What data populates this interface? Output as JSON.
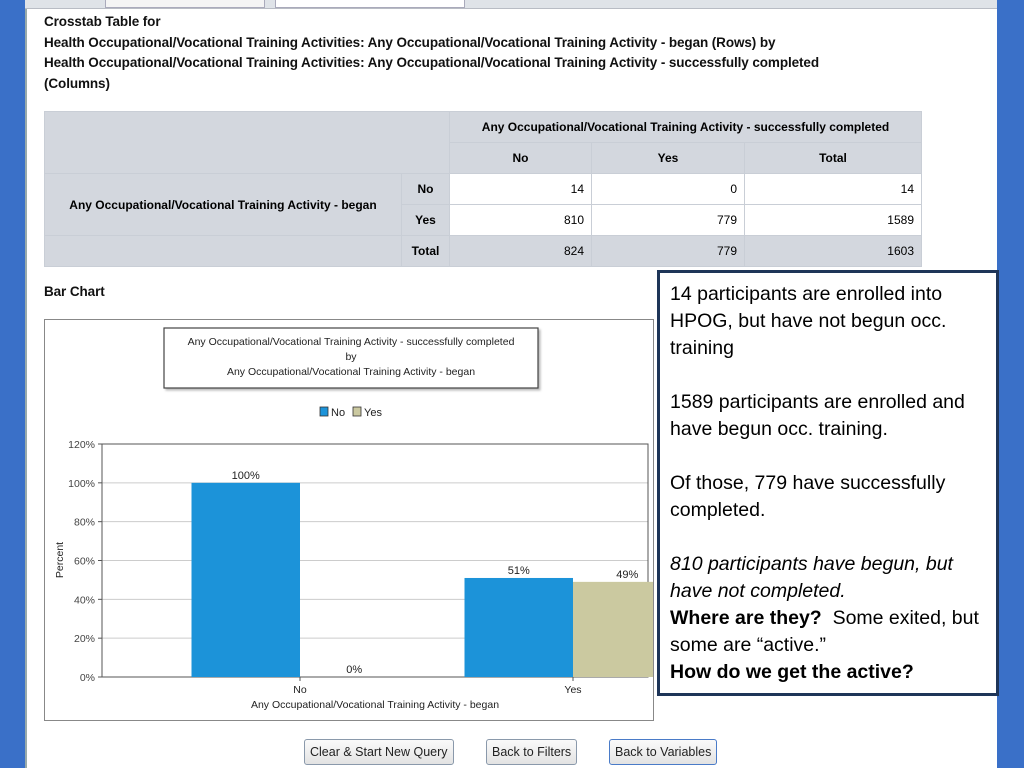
{
  "heading": {
    "line1": "Crosstab Table for",
    "line2": "Health Occupational/Vocational Training Activities: Any Occupational/Vocational Training Activity - began (Rows) by",
    "line3": "Health Occupational/Vocational Training Activities: Any Occupational/Vocational Training Activity - successfully completed",
    "line4": "(Columns)"
  },
  "table": {
    "col_group": "Any Occupational/Vocational Training Activity - successfully completed",
    "columns": [
      "No",
      "Yes",
      "Total"
    ],
    "row_group": "Any Occupational/Vocational Training Activity - began",
    "rows": [
      {
        "label": "No",
        "values": [
          "14",
          "0",
          "14"
        ]
      },
      {
        "label": "Yes",
        "values": [
          "810",
          "779",
          "1589"
        ]
      }
    ],
    "total": {
      "label": "Total",
      "values": [
        "824",
        "779",
        "1603"
      ]
    }
  },
  "bar_chart_label": "Bar Chart",
  "chart_data": {
    "type": "bar",
    "title": "Any Occupational/Vocational Training Activity - successfully completed",
    "title_by": "by",
    "title2": "Any Occupational/Vocational Training Activity - began",
    "categories": [
      "No",
      "Yes"
    ],
    "series": [
      {
        "name": "No",
        "color": "#1c93d9",
        "values": [
          100,
          51
        ],
        "labels": [
          "100%",
          "51%"
        ]
      },
      {
        "name": "Yes",
        "color": "#cbc9a0",
        "values": [
          0,
          49
        ],
        "labels": [
          "0%",
          "49%"
        ]
      }
    ],
    "xlabel": "Any Occupational/Vocational Training Activity - began",
    "ylabel": "Percent",
    "ylim": [
      0,
      120
    ],
    "yticks": [
      "0%",
      "20%",
      "40%",
      "60%",
      "80%",
      "100%",
      "120%"
    ],
    "legend": "top-center",
    "grid": true
  },
  "note": {
    "p1": "14 participants are enrolled into HPOG, but have not begun occ. training",
    "p2": "1589 participants are enrolled and have begun occ. training.",
    "p3": "Of those, 779 have successfully completed.",
    "p4": "810 participants have begun, but have not completed.",
    "q1": "Where are they?",
    "p5": "Some exited, but some are “active.”",
    "q2": "How do we get the active?"
  },
  "buttons": {
    "clear": "Clear & Start New Query",
    "filters": "Back to Filters",
    "variables": "Back to Variables"
  }
}
